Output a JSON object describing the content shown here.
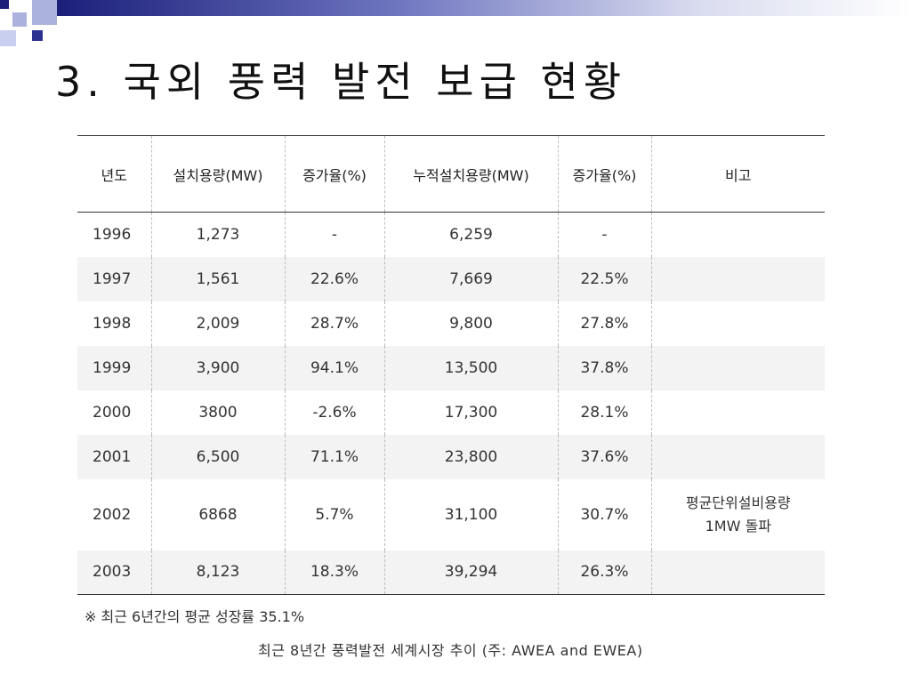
{
  "title": "3. 국외 풍력 발전 보급 현황",
  "table": {
    "headers": [
      "년도",
      "설치용량(MW)",
      "증가율(%)",
      "누적설치용량(MW)",
      "증가율(%)",
      "비고"
    ],
    "rows": [
      {
        "year": "1996",
        "capacity": "1,273",
        "growth": "-",
        "cumulative": "6,259",
        "cum_growth": "-",
        "note": "",
        "note2": ""
      },
      {
        "year": "1997",
        "capacity": "1,561",
        "growth": "22.6%",
        "cumulative": "7,669",
        "cum_growth": "22.5%",
        "note": "",
        "note2": ""
      },
      {
        "year": "1998",
        "capacity": "2,009",
        "growth": "28.7%",
        "cumulative": "9,800",
        "cum_growth": "27.8%",
        "note": "",
        "note2": ""
      },
      {
        "year": "1999",
        "capacity": "3,900",
        "growth": "94.1%",
        "cumulative": "13,500",
        "cum_growth": "37.8%",
        "note": "",
        "note2": ""
      },
      {
        "year": "2000",
        "capacity": "3800",
        "growth": "-2.6%",
        "cumulative": "17,300",
        "cum_growth": "28.1%",
        "note": "",
        "note2": ""
      },
      {
        "year": "2001",
        "capacity": "6,500",
        "growth": "71.1%",
        "cumulative": "23,800",
        "cum_growth": "37.6%",
        "note": "",
        "note2": ""
      },
      {
        "year": "2002",
        "capacity": "6868",
        "growth": "5.7%",
        "cumulative": "31,100",
        "cum_growth": "30.7%",
        "note": "평균단위설비용량",
        "note2": "1MW 돌파"
      },
      {
        "year": "2003",
        "capacity": "8,123",
        "growth": "18.3%",
        "cumulative": "39,294",
        "cum_growth": "26.3%",
        "note": "",
        "note2": ""
      }
    ]
  },
  "footnote": "※ 최근 6년간의 평균 성장률 35.1%",
  "source": "최근 8년간 풍력발전 세계시장 추이 (주: AWEA and EWEA)",
  "colors": {
    "accent": "#1b1f7a",
    "accent_light": "#aab2dd"
  }
}
